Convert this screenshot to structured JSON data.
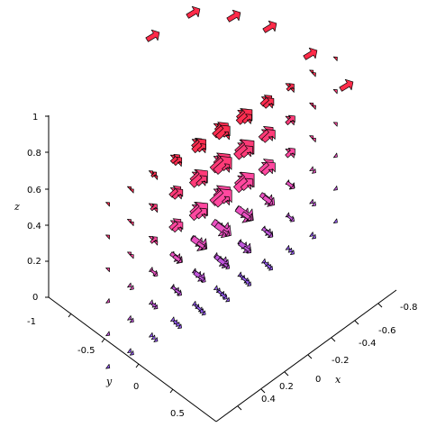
{
  "chart_data": {
    "type": "vector-field-3d",
    "title": "",
    "axes": {
      "z": {
        "label": "z",
        "range": [
          0,
          1
        ],
        "ticks": [
          "0",
          "0.2",
          "0.4",
          "0.6",
          "0.8",
          "1"
        ]
      },
      "y": {
        "label": "y",
        "range": [
          -1,
          0.5
        ],
        "ticks": [
          "-1",
          "-0.5",
          "0",
          "0.5"
        ]
      },
      "x": {
        "label": "x",
        "range": [
          -0.8,
          0.6
        ],
        "ticks": [
          "-0.8",
          "-0.6",
          "-0.4",
          "-0.2",
          "0",
          "0.2",
          "0.4"
        ]
      }
    },
    "grid": false,
    "legend": "none",
    "color_scheme": {
      "top": "#ff2a45",
      "mid": "#ff4fb3",
      "bottom": "#8c5cff",
      "outline": "#000000"
    },
    "vector_field": {
      "x_samples": [
        -0.8,
        -0.4,
        0,
        0.4
      ],
      "y_samples": [
        -1,
        -0.5,
        0,
        0.5
      ],
      "z_samples": [
        0,
        0.2,
        0.4,
        0.6,
        0.8,
        1
      ],
      "description": "Vectors arranged on a lattice; red at high z transitioning to purple at low z; longest arrows near the front-right and center."
    }
  }
}
